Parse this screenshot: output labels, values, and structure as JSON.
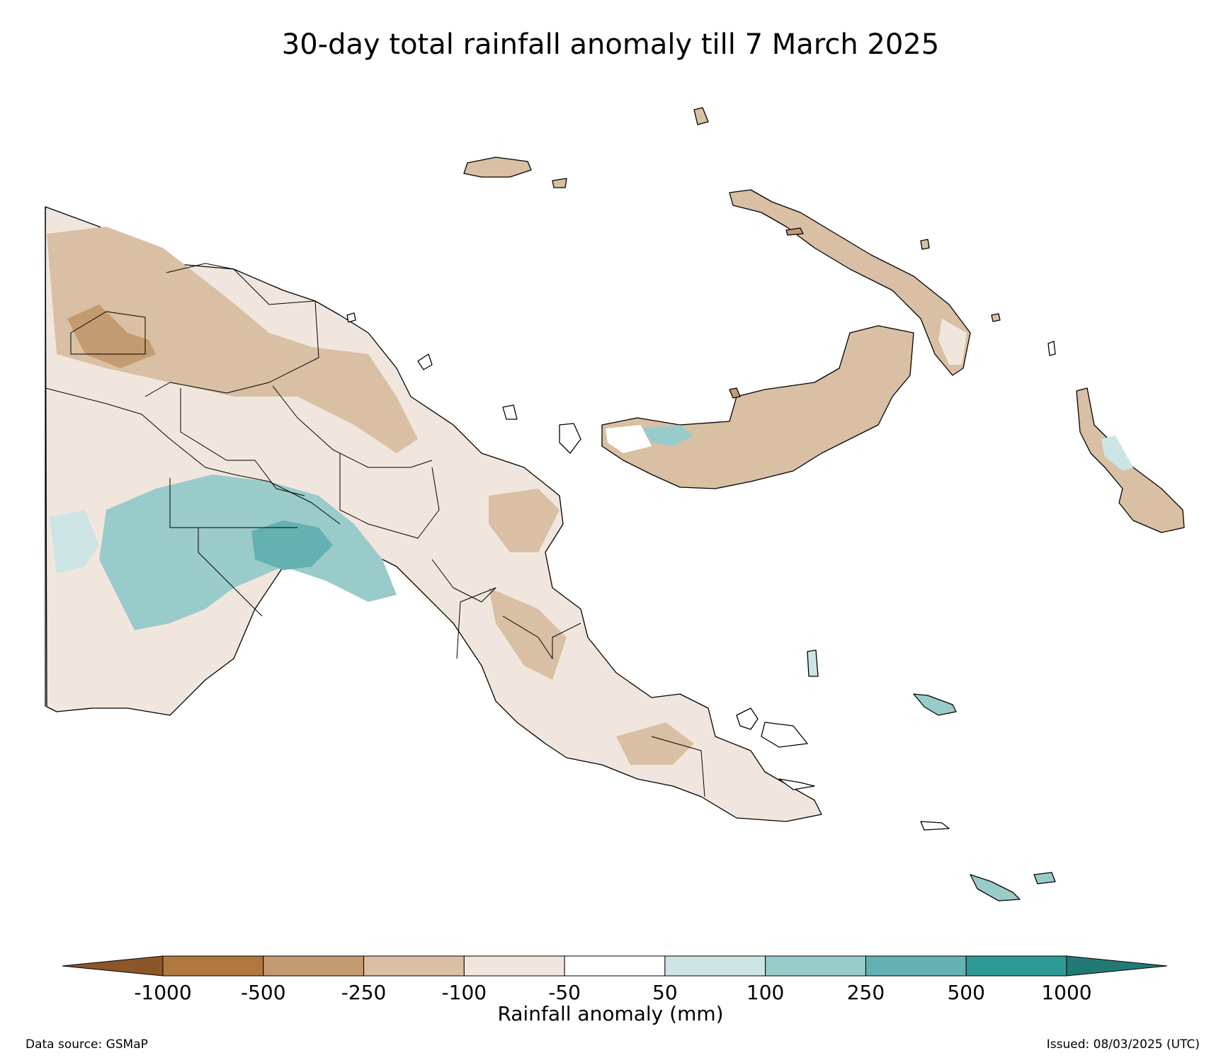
{
  "title": "30-day total rainfall anomaly till 7 March 2025",
  "colorbar": {
    "label": "Rainfall anomaly (mm)",
    "ticks": [
      "-1000",
      "-500",
      "-250",
      "-100",
      "-50",
      "50",
      "100",
      "250",
      "500",
      "1000"
    ],
    "bins": [
      {
        "range": "< -1000",
        "color": "#8c5628"
      },
      {
        "range": "-1000 to -500",
        "color": "#b07840"
      },
      {
        "range": "-500 to -250",
        "color": "#c49a70"
      },
      {
        "range": "-250 to -100",
        "color": "#d9bfa3"
      },
      {
        "range": "-100 to -50",
        "color": "#f1e6dd"
      },
      {
        "range": "-50 to 50",
        "color": "#ffffff"
      },
      {
        "range": "50 to 100",
        "color": "#cce5e4"
      },
      {
        "range": "100 to 250",
        "color": "#9acbcb"
      },
      {
        "range": "250 to 500",
        "color": "#65b0b0"
      },
      {
        "range": "500 to 1000",
        "color": "#2f9a95"
      },
      {
        "range": "> 1000",
        "color": "#237a75"
      }
    ]
  },
  "footer": {
    "source": "Data source: GSMaP",
    "issued": "Issued: 08/03/2025 (UTC)"
  }
}
